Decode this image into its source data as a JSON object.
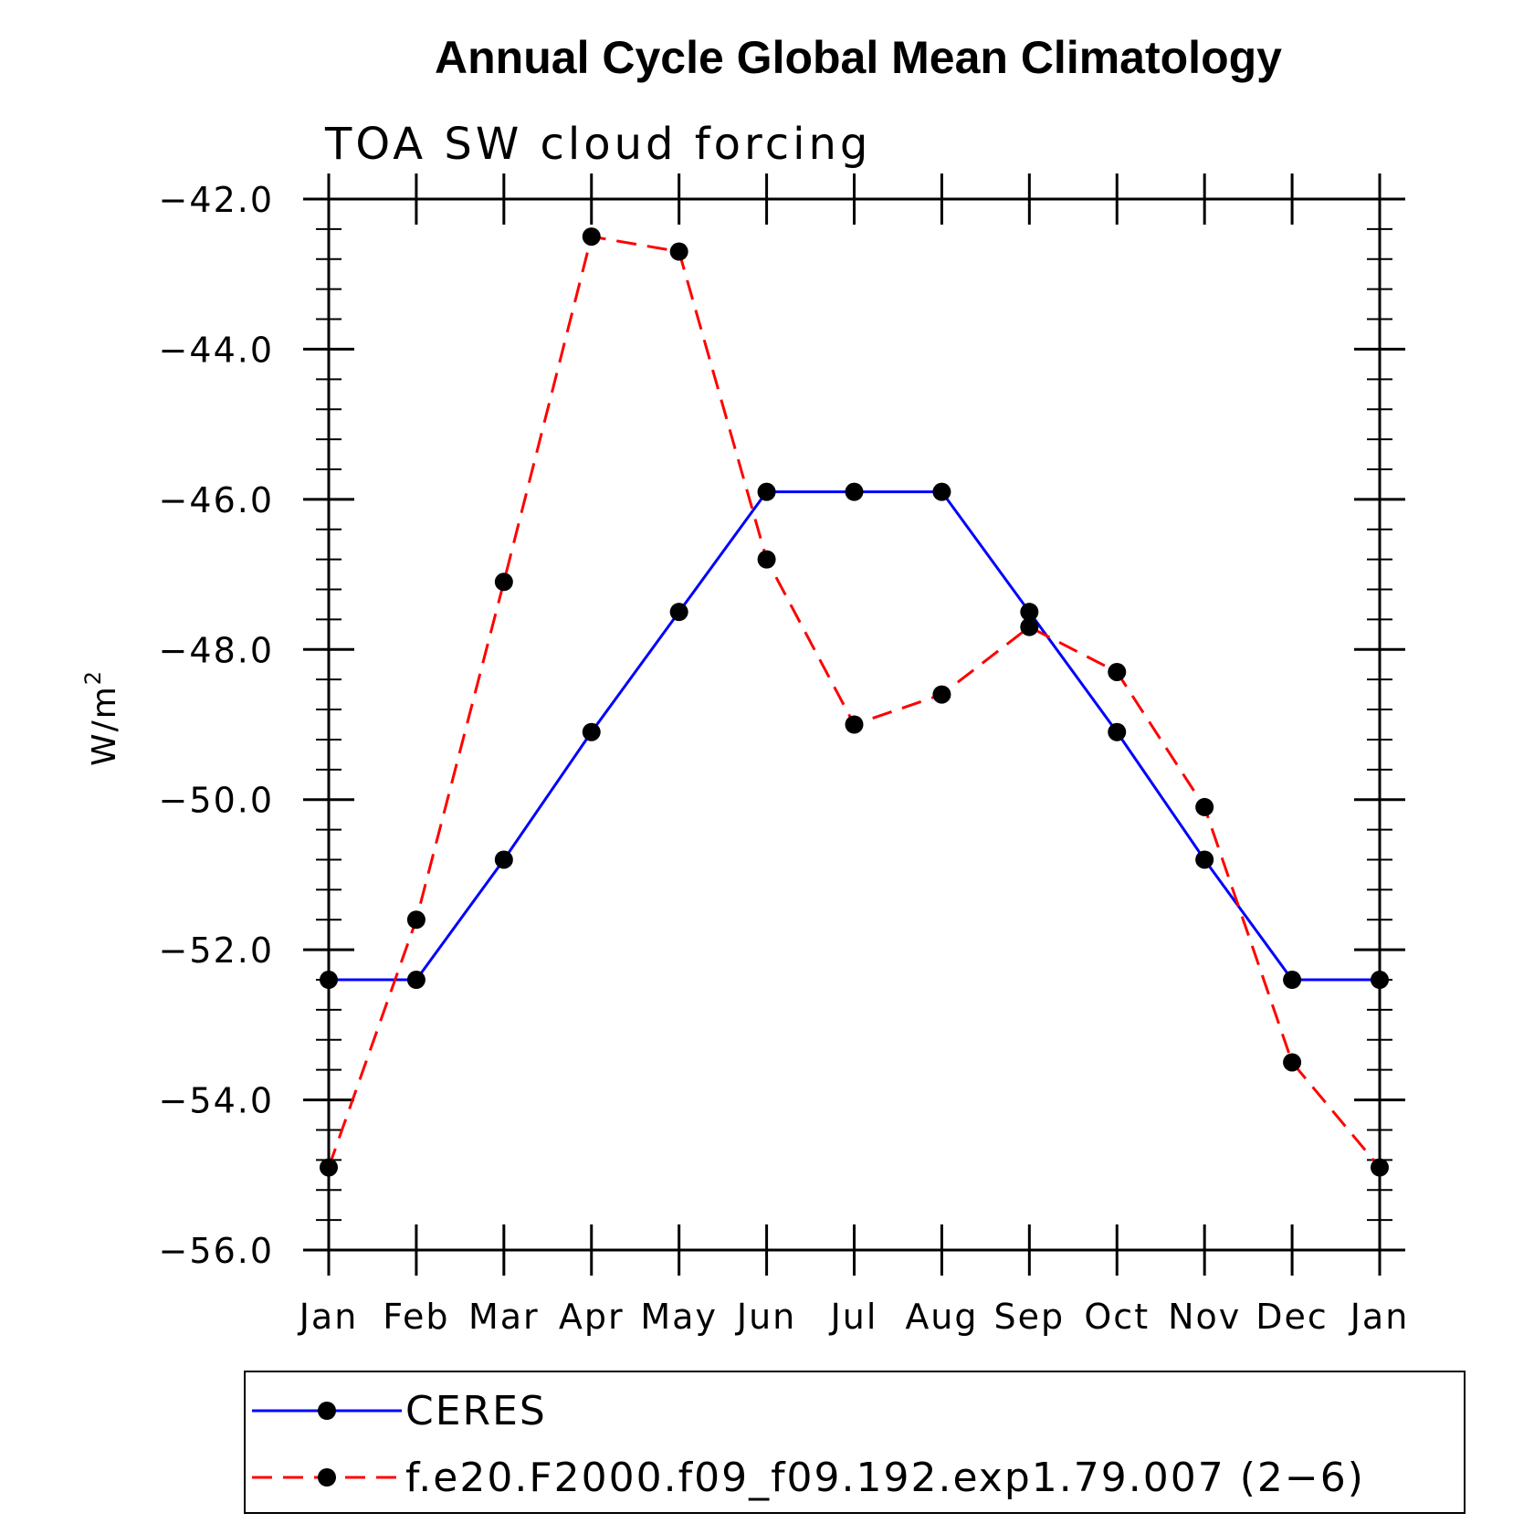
{
  "chart_data": {
    "type": "line",
    "title": "Annual Cycle Global Mean Climatology",
    "subtitle": "TOA SW cloud forcing",
    "ylabel": "W/m",
    "ylabel_sup": "2",
    "xlabel": "",
    "categories": [
      "Jan",
      "Feb",
      "Mar",
      "Apr",
      "May",
      "Jun",
      "Jul",
      "Aug",
      "Sep",
      "Oct",
      "Nov",
      "Dec",
      "Jan"
    ],
    "ylim": [
      -56.0,
      -42.0
    ],
    "yticks": [
      -42.0,
      -44.0,
      -46.0,
      -48.0,
      -50.0,
      -52.0,
      -54.0,
      -56.0
    ],
    "ytick_labels": [
      "−42.0",
      "−44.0",
      "−46.0",
      "−48.0",
      "−50.0",
      "−52.0",
      "−54.0",
      "−56.0"
    ],
    "grid": false,
    "legend_position": "bottom",
    "series": [
      {
        "name": "CERES",
        "color": "#0000ff",
        "line_style": "solid",
        "marker": "filled-circle",
        "values": [
          -52.4,
          -52.4,
          -50.8,
          -49.1,
          -47.5,
          -45.9,
          -45.9,
          -45.9,
          -47.5,
          -49.1,
          -50.8,
          -52.4,
          -52.4
        ]
      },
      {
        "name": "f.e20.F2000.f09_f09.192.exp1.79.007 (2−6)",
        "color": "#ff0000",
        "line_style": "dashed",
        "marker": "filled-circle",
        "values": [
          -54.9,
          -51.6,
          -47.1,
          -42.5,
          -42.7,
          -46.8,
          -49.0,
          -48.6,
          -47.7,
          -48.3,
          -50.1,
          -53.5,
          -54.9
        ]
      }
    ]
  }
}
